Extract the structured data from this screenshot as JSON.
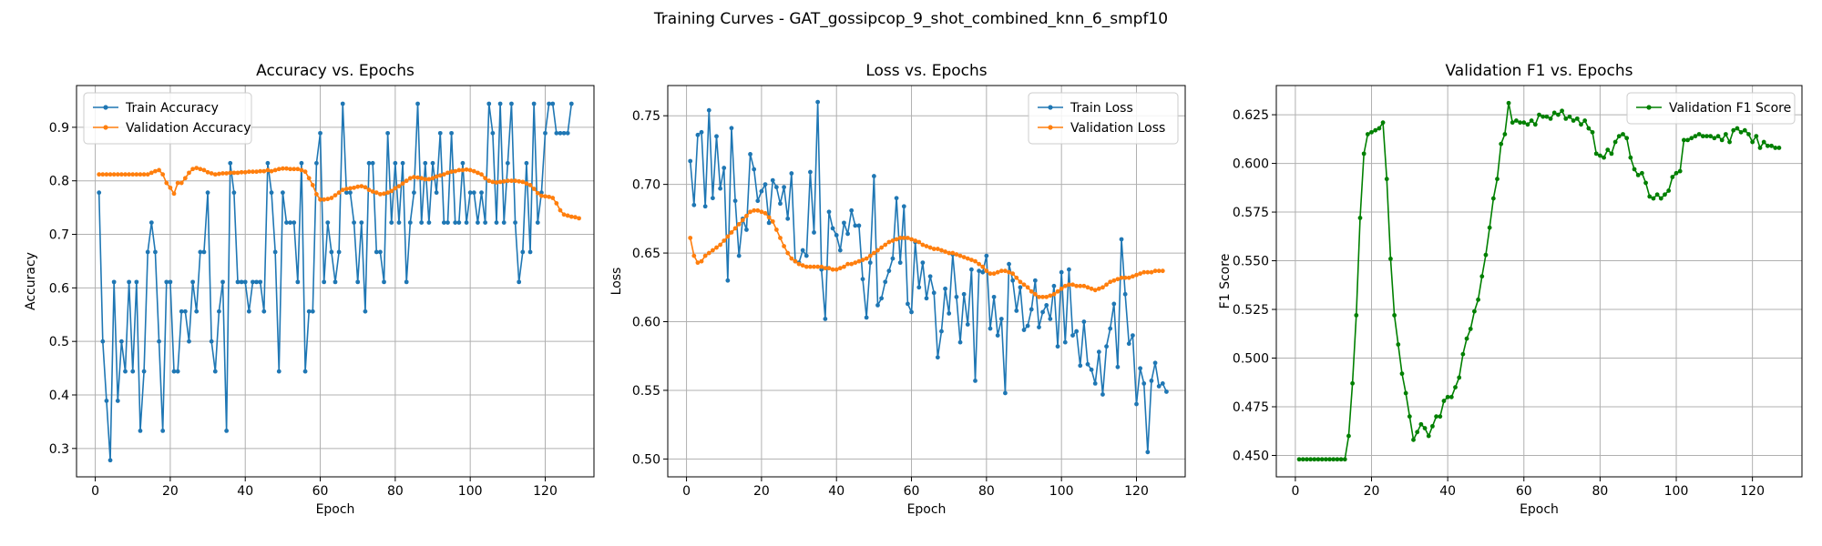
{
  "suptitle": "Training Curves - GAT_gossipcop_9_shot_combined_knn_6_smpf10",
  "colors": {
    "train": "#1f77b4",
    "validation": "#ff7f0e",
    "f1": "#008000",
    "grid": "#b0b0b0"
  },
  "chart_data": [
    {
      "type": "line",
      "title": "Accuracy vs. Epochs",
      "xlabel": "Epoch",
      "ylabel": "Accuracy",
      "xlim": [
        -5,
        133
      ],
      "ylim": [
        0.247,
        0.978
      ],
      "xticks": [
        0,
        20,
        40,
        60,
        80,
        100,
        120
      ],
      "yticks": [
        0.3,
        0.4,
        0.5,
        0.6,
        0.7,
        0.8,
        0.9
      ],
      "grid": true,
      "legend_position": "top-left",
      "x_start": 1,
      "series": [
        {
          "name": "Train Accuracy",
          "color": "#1f77b4",
          "values": [
            0.778,
            0.5,
            0.389,
            0.278,
            0.611,
            0.389,
            0.5,
            0.444,
            0.611,
            0.444,
            0.611,
            0.333,
            0.444,
            0.667,
            0.722,
            0.667,
            0.5,
            0.333,
            0.611,
            0.611,
            0.444,
            0.444,
            0.556,
            0.556,
            0.5,
            0.611,
            0.556,
            0.667,
            0.667,
            0.778,
            0.5,
            0.444,
            0.556,
            0.611,
            0.333,
            0.833,
            0.778,
            0.611,
            0.611,
            0.611,
            0.556,
            0.611,
            0.611,
            0.611,
            0.556,
            0.833,
            0.778,
            0.667,
            0.444,
            0.778,
            0.722,
            0.722,
            0.722,
            0.611,
            0.833,
            0.444,
            0.556,
            0.556,
            0.833,
            0.889,
            0.611,
            0.722,
            0.667,
            0.611,
            0.667,
            0.944,
            0.778,
            0.778,
            0.722,
            0.611,
            0.722,
            0.556,
            0.833,
            0.833,
            0.667,
            0.667,
            0.611,
            0.889,
            0.722,
            0.833,
            0.722,
            0.833,
            0.611,
            0.722,
            0.778,
            0.944,
            0.722,
            0.833,
            0.722,
            0.833,
            0.778,
            0.889,
            0.722,
            0.722,
            0.889,
            0.722,
            0.722,
            0.833,
            0.722,
            0.778,
            0.778,
            0.722,
            0.778,
            0.722,
            0.944,
            0.889,
            0.722,
            0.944,
            0.722,
            0.833,
            0.944,
            0.722,
            0.611,
            0.667,
            0.833,
            0.667,
            0.944,
            0.722,
            0.778,
            0.889,
            0.944,
            0.944,
            0.889,
            0.889,
            0.889,
            0.889,
            0.944
          ]
        },
        {
          "name": "Validation Accuracy",
          "color": "#ff7f0e",
          "values": [
            0.812,
            0.812,
            0.812,
            0.812,
            0.812,
            0.812,
            0.812,
            0.812,
            0.812,
            0.812,
            0.812,
            0.812,
            0.812,
            0.812,
            0.815,
            0.818,
            0.82,
            0.812,
            0.796,
            0.787,
            0.776,
            0.796,
            0.796,
            0.805,
            0.815,
            0.822,
            0.824,
            0.822,
            0.82,
            0.816,
            0.814,
            0.812,
            0.813,
            0.814,
            0.814,
            0.815,
            0.815,
            0.815,
            0.816,
            0.816,
            0.817,
            0.817,
            0.817,
            0.818,
            0.818,
            0.82,
            0.818,
            0.82,
            0.822,
            0.823,
            0.823,
            0.822,
            0.822,
            0.822,
            0.82,
            0.817,
            0.805,
            0.792,
            0.775,
            0.765,
            0.765,
            0.766,
            0.768,
            0.773,
            0.778,
            0.783,
            0.785,
            0.786,
            0.787,
            0.789,
            0.79,
            0.788,
            0.783,
            0.78,
            0.778,
            0.775,
            0.776,
            0.778,
            0.781,
            0.786,
            0.79,
            0.795,
            0.8,
            0.805,
            0.807,
            0.806,
            0.805,
            0.803,
            0.803,
            0.805,
            0.808,
            0.81,
            0.812,
            0.815,
            0.817,
            0.818,
            0.82,
            0.82,
            0.821,
            0.82,
            0.818,
            0.815,
            0.812,
            0.805,
            0.8,
            0.798,
            0.797,
            0.798,
            0.799,
            0.8,
            0.8,
            0.8,
            0.799,
            0.798,
            0.795,
            0.792,
            0.785,
            0.777,
            0.772,
            0.771,
            0.77,
            0.768,
            0.758,
            0.745,
            0.737,
            0.735,
            0.733,
            0.732,
            0.73
          ]
        }
      ]
    },
    {
      "type": "line",
      "title": "Loss vs. Epochs",
      "xlabel": "Epoch",
      "ylabel": "Loss",
      "xlim": [
        -5,
        133
      ],
      "ylim": [
        0.487,
        0.772
      ],
      "xticks": [
        0,
        20,
        40,
        60,
        80,
        100,
        120
      ],
      "yticks": [
        0.5,
        0.55,
        0.6,
        0.65,
        0.7,
        0.75
      ],
      "ytick_labels": [
        "0.50",
        "0.55",
        "0.60",
        "0.65",
        "0.70",
        "0.75"
      ],
      "grid": true,
      "legend_position": "top-right",
      "x_start": 1,
      "series": [
        {
          "name": "Train Loss",
          "color": "#1f77b4",
          "values": [
            0.717,
            0.685,
            0.736,
            0.738,
            0.684,
            0.754,
            0.69,
            0.735,
            0.697,
            0.712,
            0.63,
            0.741,
            0.688,
            0.648,
            0.675,
            0.667,
            0.722,
            0.711,
            0.688,
            0.695,
            0.7,
            0.672,
            0.703,
            0.698,
            0.686,
            0.698,
            0.675,
            0.708,
            0.644,
            0.643,
            0.652,
            0.648,
            0.709,
            0.665,
            0.76,
            0.638,
            0.602,
            0.68,
            0.668,
            0.663,
            0.652,
            0.672,
            0.664,
            0.681,
            0.67,
            0.67,
            0.631,
            0.603,
            0.643,
            0.706,
            0.612,
            0.617,
            0.629,
            0.637,
            0.646,
            0.69,
            0.643,
            0.684,
            0.613,
            0.607,
            0.658,
            0.625,
            0.643,
            0.617,
            0.633,
            0.621,
            0.574,
            0.593,
            0.624,
            0.606,
            0.649,
            0.618,
            0.585,
            0.62,
            0.598,
            0.638,
            0.557,
            0.637,
            0.636,
            0.648,
            0.595,
            0.618,
            0.59,
            0.602,
            0.548,
            0.642,
            0.63,
            0.608,
            0.625,
            0.594,
            0.597,
            0.609,
            0.63,
            0.596,
            0.607,
            0.612,
            0.602,
            0.626,
            0.582,
            0.636,
            0.585,
            0.638,
            0.59,
            0.593,
            0.568,
            0.6,
            0.569,
            0.565,
            0.555,
            0.578,
            0.547,
            0.582,
            0.595,
            0.613,
            0.567,
            0.66,
            0.62,
            0.584,
            0.59,
            0.54,
            0.566,
            0.555,
            0.505,
            0.557,
            0.57,
            0.553,
            0.555,
            0.549
          ]
        },
        {
          "name": "Validation Loss",
          "color": "#ff7f0e",
          "values": [
            0.661,
            0.648,
            0.643,
            0.644,
            0.648,
            0.65,
            0.652,
            0.654,
            0.656,
            0.659,
            0.662,
            0.665,
            0.668,
            0.671,
            0.674,
            0.677,
            0.68,
            0.681,
            0.681,
            0.68,
            0.679,
            0.676,
            0.673,
            0.667,
            0.661,
            0.655,
            0.65,
            0.646,
            0.644,
            0.642,
            0.641,
            0.64,
            0.64,
            0.64,
            0.64,
            0.64,
            0.639,
            0.639,
            0.638,
            0.638,
            0.639,
            0.64,
            0.642,
            0.642,
            0.643,
            0.644,
            0.645,
            0.646,
            0.648,
            0.65,
            0.652,
            0.654,
            0.656,
            0.658,
            0.659,
            0.66,
            0.661,
            0.661,
            0.661,
            0.66,
            0.659,
            0.658,
            0.656,
            0.655,
            0.654,
            0.653,
            0.653,
            0.652,
            0.651,
            0.65,
            0.65,
            0.649,
            0.648,
            0.647,
            0.646,
            0.645,
            0.644,
            0.642,
            0.64,
            0.637,
            0.635,
            0.635,
            0.636,
            0.637,
            0.637,
            0.636,
            0.635,
            0.632,
            0.629,
            0.627,
            0.625,
            0.622,
            0.62,
            0.618,
            0.618,
            0.618,
            0.619,
            0.62,
            0.622,
            0.624,
            0.626,
            0.627,
            0.627,
            0.626,
            0.626,
            0.626,
            0.625,
            0.624,
            0.623,
            0.624,
            0.625,
            0.627,
            0.629,
            0.63,
            0.631,
            0.632,
            0.632,
            0.632,
            0.633,
            0.634,
            0.635,
            0.636,
            0.636,
            0.636,
            0.637,
            0.637,
            0.637
          ]
        }
      ]
    },
    {
      "type": "line",
      "title": "Validation F1 vs. Epochs",
      "xlabel": "Epoch",
      "ylabel": "F1 Score",
      "xlim": [
        -5,
        133
      ],
      "ylim": [
        0.439,
        0.64
      ],
      "xticks": [
        0,
        20,
        40,
        60,
        80,
        100,
        120
      ],
      "yticks": [
        0.45,
        0.475,
        0.5,
        0.525,
        0.55,
        0.575,
        0.6,
        0.625
      ],
      "ytick_labels": [
        "0.450",
        "0.475",
        "0.500",
        "0.525",
        "0.550",
        "0.575",
        "0.600",
        "0.625"
      ],
      "grid": true,
      "legend_position": "top-right",
      "x_start": 1,
      "series": [
        {
          "name": "Validation F1 Score",
          "color": "#008000",
          "values": [
            0.448,
            0.448,
            0.448,
            0.448,
            0.448,
            0.448,
            0.448,
            0.448,
            0.448,
            0.448,
            0.448,
            0.448,
            0.448,
            0.46,
            0.487,
            0.522,
            0.572,
            0.605,
            0.615,
            0.616,
            0.617,
            0.618,
            0.621,
            0.592,
            0.551,
            0.522,
            0.507,
            0.492,
            0.482,
            0.47,
            0.458,
            0.462,
            0.466,
            0.464,
            0.46,
            0.465,
            0.47,
            0.47,
            0.478,
            0.48,
            0.48,
            0.485,
            0.49,
            0.502,
            0.51,
            0.515,
            0.524,
            0.53,
            0.542,
            0.553,
            0.567,
            0.582,
            0.592,
            0.61,
            0.615,
            0.631,
            0.621,
            0.622,
            0.621,
            0.621,
            0.62,
            0.622,
            0.62,
            0.625,
            0.624,
            0.624,
            0.623,
            0.626,
            0.625,
            0.627,
            0.623,
            0.624,
            0.622,
            0.623,
            0.62,
            0.622,
            0.618,
            0.616,
            0.605,
            0.604,
            0.603,
            0.607,
            0.605,
            0.611,
            0.614,
            0.615,
            0.613,
            0.603,
            0.597,
            0.594,
            0.595,
            0.59,
            0.583,
            0.582,
            0.584,
            0.582,
            0.584,
            0.586,
            0.593,
            0.595,
            0.596,
            0.612,
            0.612,
            0.613,
            0.614,
            0.615,
            0.614,
            0.614,
            0.614,
            0.613,
            0.614,
            0.612,
            0.615,
            0.611,
            0.617,
            0.618,
            0.616,
            0.617,
            0.615,
            0.611,
            0.614,
            0.608,
            0.611,
            0.609,
            0.609,
            0.608,
            0.608
          ]
        }
      ]
    }
  ]
}
